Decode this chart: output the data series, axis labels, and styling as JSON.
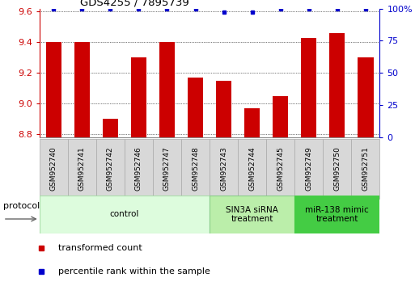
{
  "title": "GDS4255 / 7895739",
  "samples": [
    "GSM952740",
    "GSM952741",
    "GSM952742",
    "GSM952746",
    "GSM952747",
    "GSM952748",
    "GSM952743",
    "GSM952744",
    "GSM952745",
    "GSM952749",
    "GSM952750",
    "GSM952751"
  ],
  "bar_values": [
    9.4,
    9.4,
    8.9,
    9.3,
    9.4,
    9.17,
    9.15,
    8.97,
    9.05,
    9.43,
    9.46,
    9.3
  ],
  "percentile_values": [
    100,
    100,
    100,
    100,
    100,
    100,
    97,
    97,
    100,
    100,
    100,
    100
  ],
  "bar_color": "#cc0000",
  "percentile_color": "#0000cc",
  "ylim_left": [
    8.78,
    9.62
  ],
  "ylim_right": [
    0,
    100
  ],
  "yticks_left": [
    8.8,
    9.0,
    9.2,
    9.4,
    9.6
  ],
  "yticks_right": [
    0,
    25,
    50,
    75,
    100
  ],
  "groups": [
    {
      "label": "control",
      "start": 0,
      "end": 6,
      "color": "#ddfcdd",
      "edge_color": "#aaddaa"
    },
    {
      "label": "SIN3A siRNA\ntreatment",
      "start": 6,
      "end": 9,
      "color": "#bbeeaa",
      "edge_color": "#88cc88"
    },
    {
      "label": "miR-138 mimic\ntreatment",
      "start": 9,
      "end": 12,
      "color": "#44cc44",
      "edge_color": "#44cc44"
    }
  ],
  "protocol_label": "protocol",
  "legend_bar_label": "transformed count",
  "legend_pct_label": "percentile rank within the sample",
  "bar_width": 0.55,
  "base_value": 8.78
}
